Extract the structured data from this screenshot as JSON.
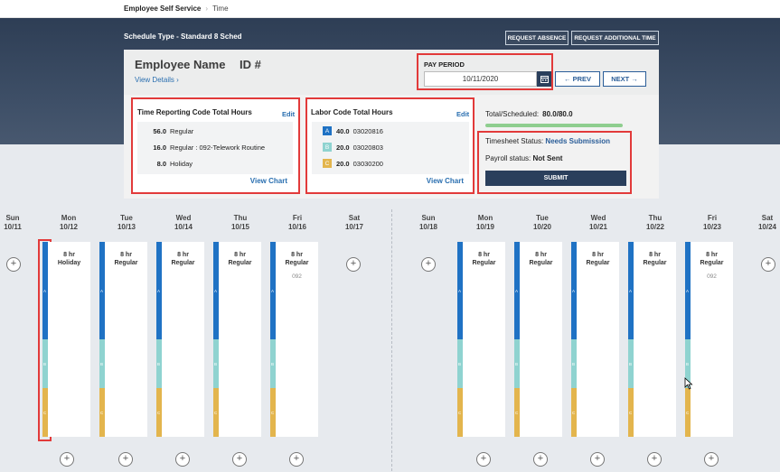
{
  "breadcrumb": {
    "root": "Employee Self Service",
    "separator": "›",
    "leaf": "Time"
  },
  "header": {
    "schedule_type": "Schedule Type -  Standard 8 Sched",
    "request_absence": "REQUEST ABSENCE",
    "request_additional_time": "REQUEST ADDITIONAL TIME"
  },
  "employee": {
    "name": "Employee Name",
    "id_label": "ID #",
    "view_details": "View Details ›"
  },
  "pay_period": {
    "label": "PAY PERIOD",
    "value": "10/11/2020",
    "prev": "← PREV",
    "next": "NEXT →"
  },
  "trc": {
    "title": "Time Reporting Code Total Hours",
    "edit": "Edit",
    "rows": [
      {
        "hours": "56.0",
        "label": "Regular"
      },
      {
        "hours": "16.0",
        "label": "Regular : 092-Telework Routine"
      },
      {
        "hours": "8.0",
        "label": "Holiday"
      }
    ],
    "view_chart": "View Chart"
  },
  "labor": {
    "title": "Labor Code Total Hours",
    "edit": "Edit",
    "rows": [
      {
        "badge": "A",
        "hours": "40.0",
        "code": "03020816",
        "color": "#1f72c4"
      },
      {
        "badge": "B",
        "hours": "20.0",
        "code": "03020803",
        "color": "#8fd3d0"
      },
      {
        "badge": "C",
        "hours": "20.0",
        "code": "03030200",
        "color": "#e3b54d"
      }
    ],
    "view_chart": "View Chart"
  },
  "summary": {
    "total_label": "Total/Scheduled:",
    "total_value": "80.0/80.0",
    "total_progress": 1.0,
    "timesheet_label": "Timesheet Status:",
    "timesheet_value": "Needs Submission",
    "payroll_label": "Payroll status:",
    "payroll_value": "Not Sent",
    "submit": "SUBMIT"
  },
  "days": [
    {
      "dow": "Sun",
      "date": "10/11"
    },
    {
      "dow": "Mon",
      "date": "10/12",
      "hours": "8 hr",
      "type": "Holiday"
    },
    {
      "dow": "Tue",
      "date": "10/13",
      "hours": "8 hr",
      "type": "Regular"
    },
    {
      "dow": "Wed",
      "date": "10/14",
      "hours": "8 hr",
      "type": "Regular"
    },
    {
      "dow": "Thu",
      "date": "10/15",
      "hours": "8 hr",
      "type": "Regular"
    },
    {
      "dow": "Fri",
      "date": "10/16",
      "hours": "8 hr",
      "type": "Regular",
      "code": "092"
    },
    {
      "dow": "Sat",
      "date": "10/17"
    },
    {
      "dow": "Sun",
      "date": "10/18"
    },
    {
      "dow": "Mon",
      "date": "10/19",
      "hours": "8 hr",
      "type": "Regular"
    },
    {
      "dow": "Tue",
      "date": "10/20",
      "hours": "8 hr",
      "type": "Regular"
    },
    {
      "dow": "Wed",
      "date": "10/21",
      "hours": "8 hr",
      "type": "Regular"
    },
    {
      "dow": "Thu",
      "date": "10/22",
      "hours": "8 hr",
      "type": "Regular"
    },
    {
      "dow": "Fri",
      "date": "10/23",
      "hours": "8 hr",
      "type": "Regular",
      "code": "092"
    },
    {
      "dow": "Sat",
      "date": "10/24"
    }
  ],
  "stripe_labels": [
    "A",
    "B",
    "C"
  ],
  "icons": {
    "calendar": "calendar-icon",
    "add": "plus-circle-icon",
    "cursor": "mouse-pointer-icon"
  },
  "colors": {
    "accent_navy": "#2a3f5c",
    "link_blue": "#2a6fb0",
    "highlight_red": "#e23a3a"
  }
}
